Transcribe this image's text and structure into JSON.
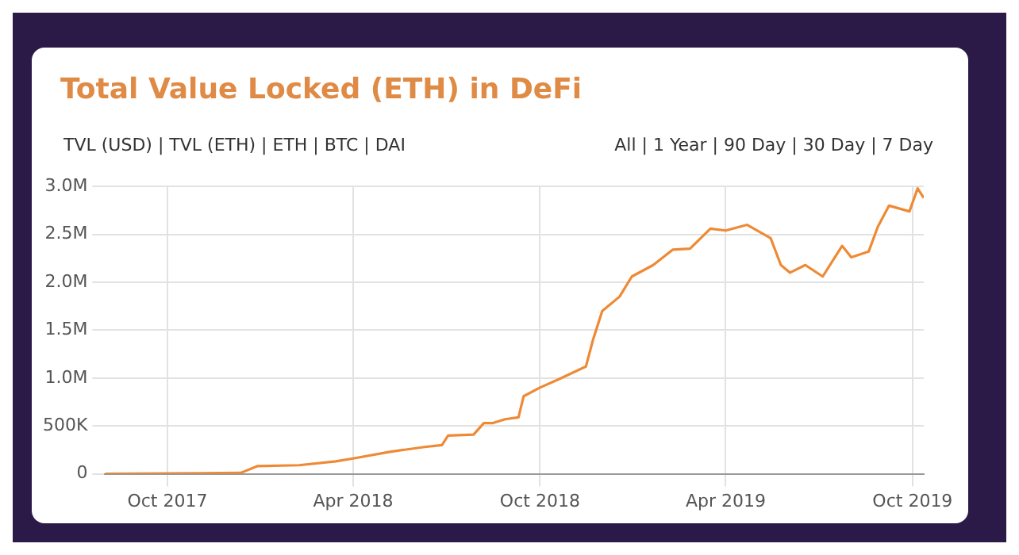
{
  "chart_data": {
    "type": "line",
    "title": "Total Value Locked (ETH) in DeFi",
    "annotations": [
      "TVL (USD) | TVL (ETH) | ETH | BTC | DAI",
      "All | 1 Year | 90 Day | 30 Day | 7 Day"
    ],
    "x": [
      "2017-08-01",
      "2017-12-12",
      "2017-12-28",
      "2018-02-07",
      "2018-03-15",
      "2018-04-01",
      "2018-05-07",
      "2018-06-10",
      "2018-06-27",
      "2018-07-03",
      "2018-07-28",
      "2018-08-07",
      "2018-08-16",
      "2018-08-28",
      "2018-09-10",
      "2018-09-15",
      "2018-10-01",
      "2018-10-20",
      "2018-11-15",
      "2018-11-22",
      "2018-12-01",
      "2018-12-18",
      "2018-12-30",
      "2019-01-20",
      "2019-02-08",
      "2019-02-25",
      "2019-03-17",
      "2019-04-01",
      "2019-04-22",
      "2019-05-15",
      "2019-05-25",
      "2019-06-03",
      "2019-06-18",
      "2019-07-05",
      "2019-07-24",
      "2019-08-02",
      "2019-08-19",
      "2019-08-28",
      "2019-09-08",
      "2019-09-28",
      "2019-10-06",
      "2019-10-12"
    ],
    "series": [
      {
        "color": "#ee8a35",
        "values": [
          0,
          10000,
          80000,
          90000,
          130000,
          160000,
          230000,
          280000,
          300000,
          400000,
          410000,
          530000,
          530000,
          570000,
          590000,
          810000,
          900000,
          990000,
          1120000,
          1400000,
          1700000,
          1850000,
          2060000,
          2180000,
          2340000,
          2350000,
          2560000,
          2540000,
          2600000,
          2460000,
          2180000,
          2100000,
          2180000,
          2060000,
          2380000,
          2260000,
          2320000,
          2580000,
          2800000,
          2740000,
          2980000,
          2880000
        ]
      }
    ],
    "xlim": [
      "2017-08-01",
      "2019-10-12"
    ],
    "xticks": [
      {
        "value": "2017-10-01",
        "label": "Oct 2017"
      },
      {
        "value": "2018-04-01",
        "label": "Apr 2018"
      },
      {
        "value": "2018-10-01",
        "label": "Oct 2018"
      },
      {
        "value": "2019-04-01",
        "label": "Apr 2019"
      },
      {
        "value": "2019-10-01",
        "label": "Oct 2019"
      }
    ],
    "ylim": [
      0,
      3000000
    ],
    "yticks": [
      0,
      {
        "value": 500000,
        "label": "500K"
      },
      {
        "value": 1000000,
        "label": "1.0M"
      },
      {
        "value": 1500000,
        "label": "1.5M"
      },
      {
        "value": 2000000,
        "label": "2.0M"
      },
      {
        "value": 2500000,
        "label": "2.5M"
      },
      {
        "value": 3000000,
        "label": "3.0M"
      }
    ],
    "grid": true,
    "legend": false,
    "marker": "none",
    "line_style": "solid"
  }
}
